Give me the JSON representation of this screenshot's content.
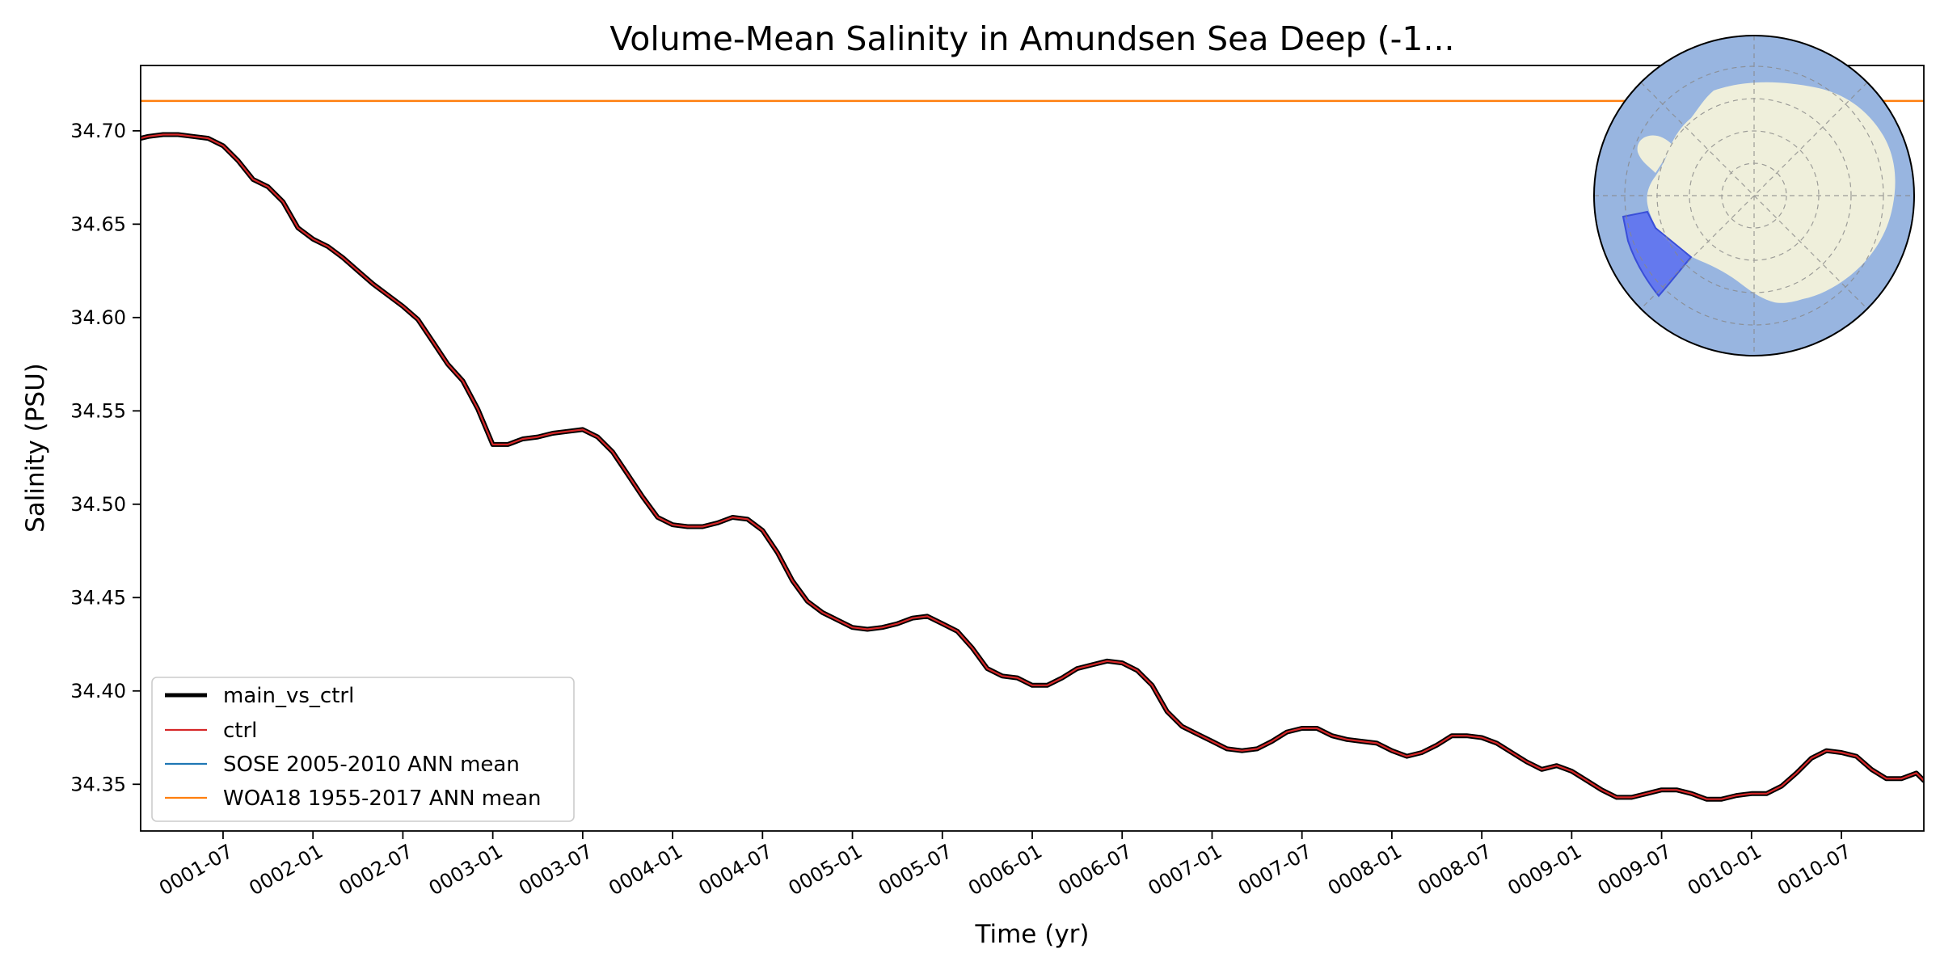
{
  "chart_data": {
    "type": "line",
    "title": "Volume-Mean Salinity in Amundsen Sea Deep (-1...",
    "xlabel": "Time (yr)",
    "ylabel": "Salinity (PSU)",
    "ylim": [
      34.325,
      34.735
    ],
    "yticks": [
      34.35,
      34.4,
      34.45,
      34.5,
      34.55,
      34.6,
      34.65,
      34.7
    ],
    "ytick_labels": [
      "34.35",
      "34.40",
      "34.45",
      "34.50",
      "34.55",
      "34.60",
      "34.65",
      "34.70"
    ],
    "xlim_months": [
      0.5,
      119.5
    ],
    "xticks_months": [
      6,
      12,
      18,
      24,
      30,
      36,
      42,
      48,
      54,
      60,
      66,
      72,
      78,
      84,
      90,
      96,
      102,
      108,
      114
    ],
    "xtick_labels": [
      "0001-07",
      "0002-01",
      "0002-07",
      "0003-01",
      "0003-07",
      "0004-01",
      "0004-07",
      "0005-01",
      "0005-07",
      "0006-01",
      "0006-07",
      "0007-01",
      "0007-07",
      "0008-01",
      "0008-07",
      "0009-01",
      "0009-07",
      "0010-01",
      "0010-07"
    ],
    "grid": false,
    "legend_position": "lower-left",
    "series": [
      {
        "name": "main_vs_ctrl",
        "color": "#000000",
        "x_months": [
          0.5,
          1,
          2,
          3,
          4,
          5,
          6,
          7,
          8,
          9,
          10,
          11,
          12,
          13,
          14,
          15,
          16,
          17,
          18,
          19,
          20,
          21,
          22,
          23,
          24,
          25,
          26,
          27,
          28,
          29,
          30,
          31,
          32,
          33,
          34,
          35,
          36,
          37,
          38,
          39,
          40,
          41,
          42,
          43,
          44,
          45,
          46,
          47,
          48,
          49,
          50,
          51,
          52,
          53,
          54,
          55,
          56,
          57,
          58,
          59,
          60,
          61,
          62,
          63,
          64,
          65,
          66,
          67,
          68,
          69,
          70,
          71,
          72,
          73,
          74,
          75,
          76,
          77,
          78,
          79,
          80,
          81,
          82,
          83,
          84,
          85,
          86,
          87,
          88,
          89,
          90,
          91,
          92,
          93,
          94,
          95,
          96,
          97,
          98,
          99,
          100,
          101,
          102,
          103,
          104,
          105,
          106,
          107,
          108,
          109,
          110,
          111,
          112,
          113,
          114,
          115,
          116,
          117,
          118,
          119,
          119.5
        ],
        "values": [
          34.696,
          34.697,
          34.698,
          34.698,
          34.697,
          34.696,
          34.692,
          34.684,
          34.674,
          34.67,
          34.662,
          34.648,
          34.642,
          34.638,
          34.632,
          34.625,
          34.618,
          34.612,
          34.606,
          34.599,
          34.587,
          34.575,
          34.566,
          34.551,
          34.532,
          34.532,
          34.535,
          34.536,
          34.538,
          34.539,
          34.54,
          34.536,
          34.528,
          34.516,
          34.504,
          34.493,
          34.489,
          34.488,
          34.488,
          34.49,
          34.493,
          34.492,
          34.486,
          34.474,
          34.459,
          34.448,
          34.442,
          34.438,
          34.434,
          34.433,
          34.434,
          34.436,
          34.439,
          34.44,
          34.436,
          34.432,
          34.423,
          34.412,
          34.408,
          34.407,
          34.403,
          34.403,
          34.407,
          34.412,
          34.414,
          34.416,
          34.415,
          34.411,
          34.403,
          34.389,
          34.381,
          34.377,
          34.373,
          34.369,
          34.368,
          34.369,
          34.373,
          34.378,
          34.38,
          34.38,
          34.376,
          34.374,
          34.373,
          34.372,
          34.368,
          34.365,
          34.367,
          34.371,
          34.376,
          34.376,
          34.375,
          34.372,
          34.367,
          34.362,
          34.358,
          34.36,
          34.357,
          34.352,
          34.347,
          34.343,
          34.343,
          34.345,
          34.347,
          34.347,
          34.345,
          34.342,
          34.342,
          34.344,
          34.345,
          34.345,
          34.349,
          34.356,
          34.364,
          34.368,
          34.367,
          34.365,
          34.358,
          34.353,
          34.353,
          34.356,
          34.352
        ]
      },
      {
        "name": "ctrl",
        "color": "#d62728"
      },
      {
        "name": "SOSE 2005-2010 ANN mean",
        "color": "#1f77b4"
      },
      {
        "name": "WOA18 1955-2017 ANN mean",
        "color": "#ff7f0e",
        "constant_value": 34.716
      }
    ],
    "inset_map": {
      "description": "South polar stereographic map of Antarctica",
      "ocean_color": "#98b5e0",
      "land_color": "#efefdb",
      "region_color": "#5b6ff0"
    }
  }
}
